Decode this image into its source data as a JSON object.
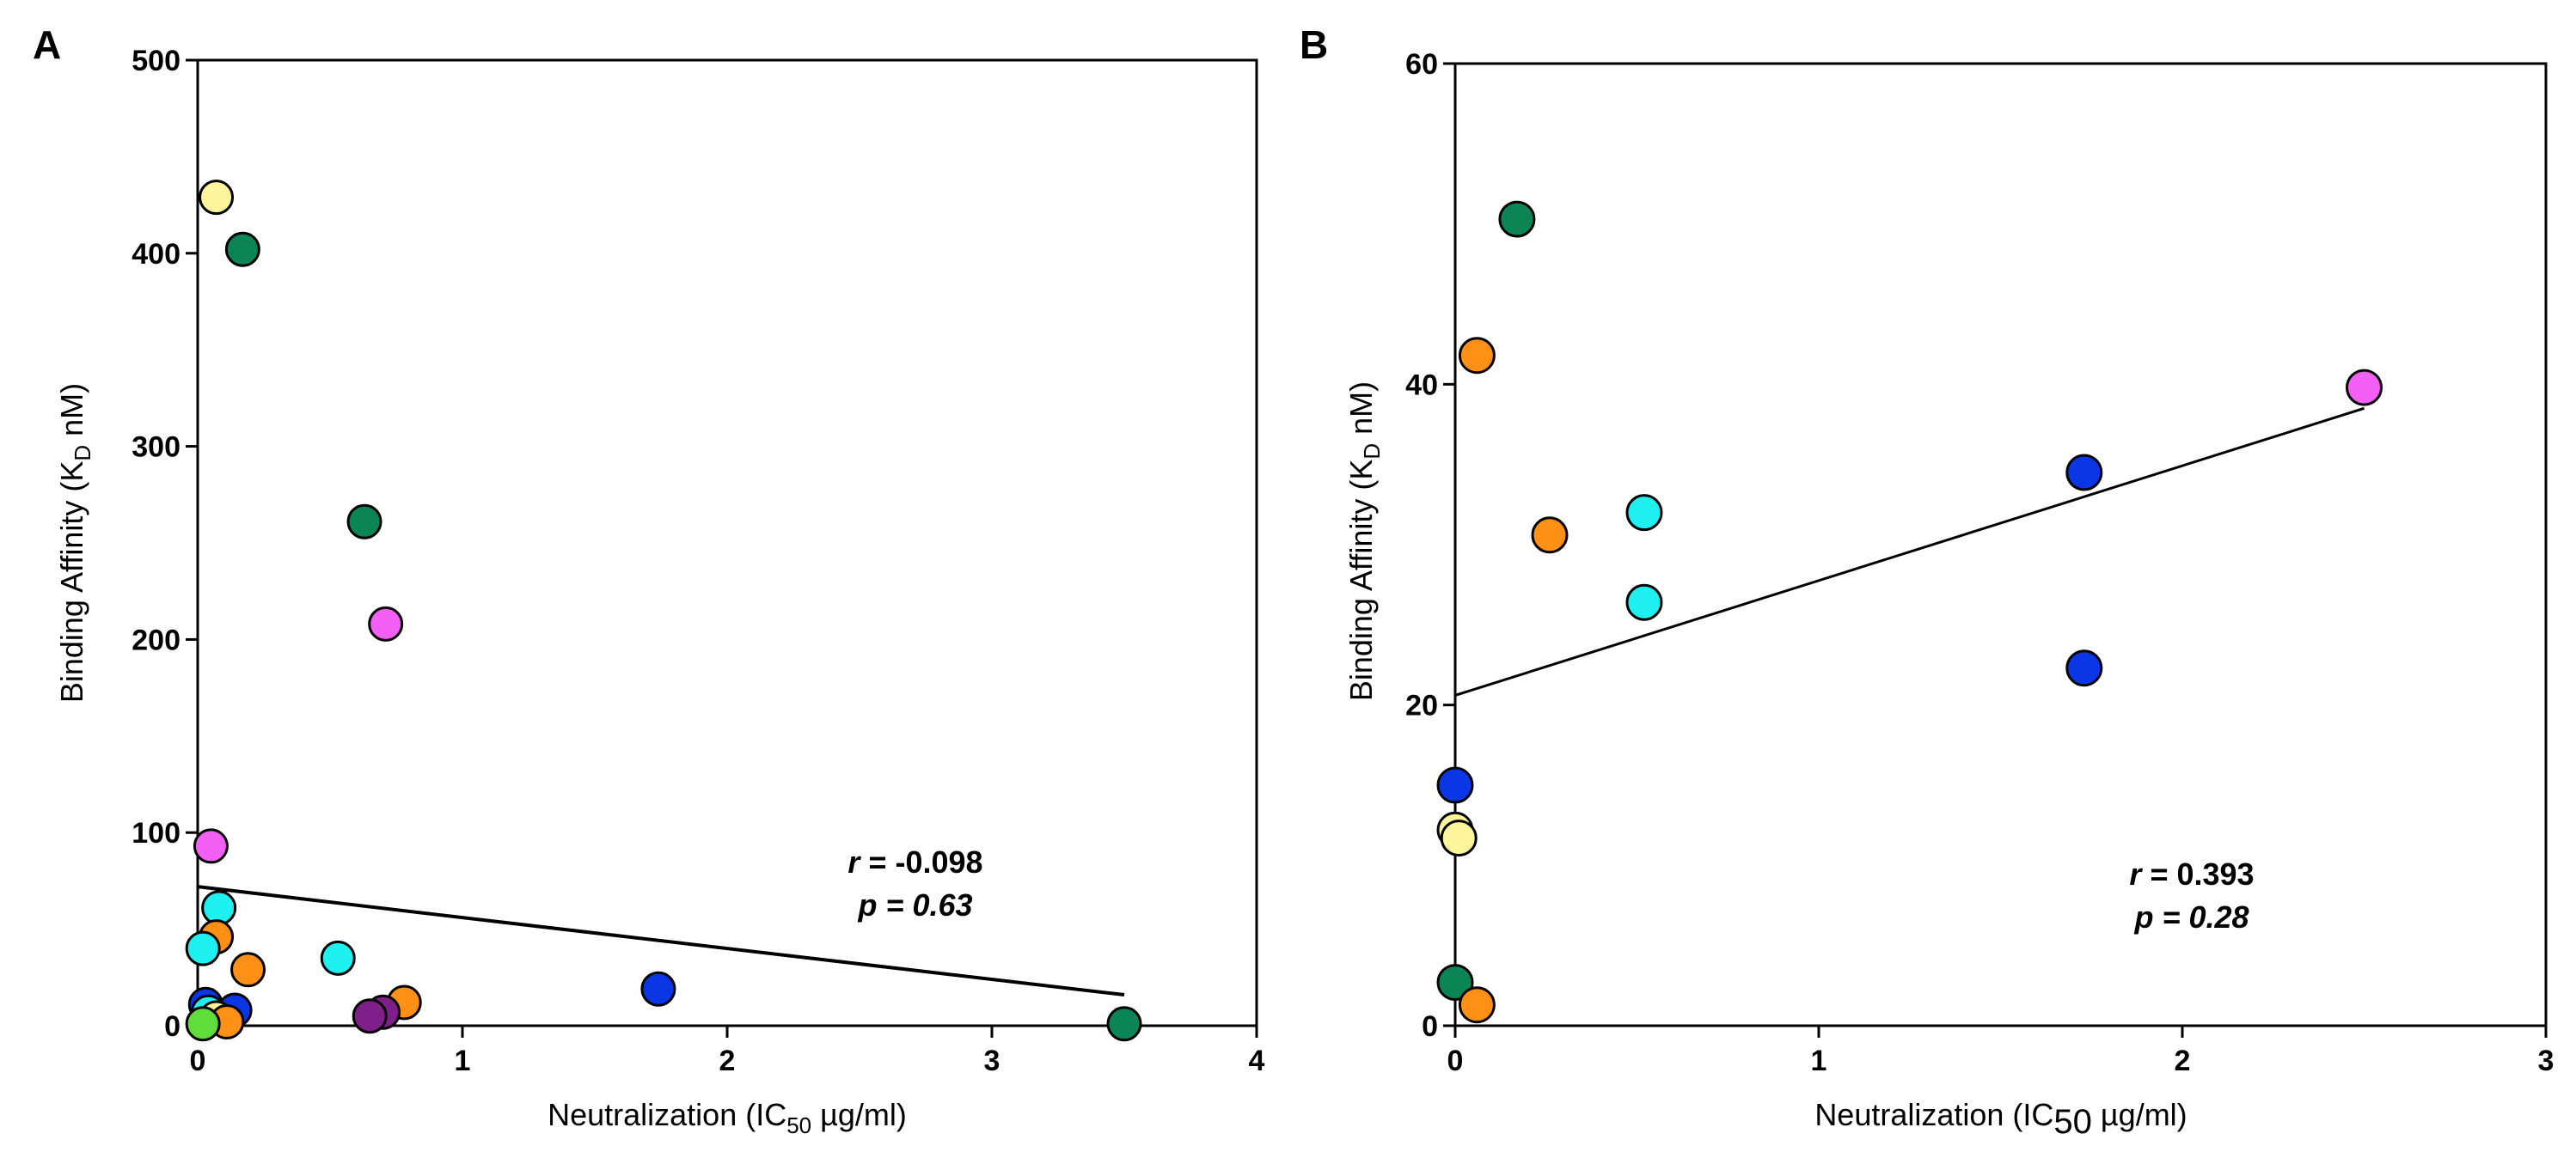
{
  "chart_data": [
    {
      "panel": "A",
      "type": "scatter",
      "xlabel": "Neutralization (IC50 µg/ml)",
      "ylabel": "Binding Affinity (KD nM)",
      "xlim": [
        0,
        4
      ],
      "ylim": [
        0,
        500
      ],
      "xticks": [
        0,
        1,
        2,
        3,
        4
      ],
      "yticks": [
        0,
        100,
        200,
        300,
        400,
        500
      ],
      "grid": false,
      "points": [
        {
          "x": 0.07,
          "y": 429,
          "color": "#fdf59b"
        },
        {
          "x": 0.17,
          "y": 402,
          "color": "#0b8556"
        },
        {
          "x": 0.63,
          "y": 261,
          "color": "#0b8556"
        },
        {
          "x": 0.71,
          "y": 208,
          "color": "#f45ff5"
        },
        {
          "x": 0.05,
          "y": 93,
          "color": "#f45ff5"
        },
        {
          "x": 0.08,
          "y": 61,
          "color": "#1ef0f0"
        },
        {
          "x": 0.07,
          "y": 46,
          "color": "#ff9016"
        },
        {
          "x": 0.02,
          "y": 40,
          "color": "#1ef0f0"
        },
        {
          "x": 0.53,
          "y": 35,
          "color": "#1ef0f0"
        },
        {
          "x": 0.19,
          "y": 29,
          "color": "#ff9016"
        },
        {
          "x": 1.74,
          "y": 19,
          "color": "#0b36e6"
        },
        {
          "x": 0.78,
          "y": 12,
          "color": "#ff9016"
        },
        {
          "x": 0.03,
          "y": 11,
          "color": "#0b36e6"
        },
        {
          "x": 0.14,
          "y": 8,
          "color": "#0b36e6"
        },
        {
          "x": 0.7,
          "y": 7,
          "color": "#7e1f8a"
        },
        {
          "x": 0.65,
          "y": 5,
          "color": "#7e1f8a"
        },
        {
          "x": 0.04,
          "y": 7,
          "color": "#1ef0f0"
        },
        {
          "x": 0.07,
          "y": 4,
          "color": "#fdf59b"
        },
        {
          "x": 0.11,
          "y": 2,
          "color": "#ff9016"
        },
        {
          "x": 0.02,
          "y": 1,
          "color": "#5fde3b"
        },
        {
          "x": 3.5,
          "y": 1,
          "color": "#0b8556"
        }
      ],
      "trendline": {
        "x": [
          0,
          3.5
        ],
        "y": [
          72,
          16
        ]
      },
      "annotation": {
        "r_label": "r",
        "r_value": "= -0.098",
        "p_label": "p",
        "p_value": "= 0.63"
      }
    },
    {
      "panel": "B",
      "type": "scatter",
      "xlabel": "Neutralization (IC50 µg/ml)",
      "ylabel": "Binding Affinity (KD nM)",
      "xlim": [
        0,
        3
      ],
      "ylim": [
        0,
        60
      ],
      "xticks": [
        0,
        1,
        2,
        3
      ],
      "yticks": [
        0,
        20,
        40,
        60
      ],
      "grid": false,
      "points": [
        {
          "x": 0.17,
          "y": 50.3,
          "color": "#0b8556"
        },
        {
          "x": 0.06,
          "y": 41.8,
          "color": "#ff9016"
        },
        {
          "x": 2.5,
          "y": 39.8,
          "color": "#f45ff5"
        },
        {
          "x": 1.73,
          "y": 34.5,
          "color": "#0b36e6"
        },
        {
          "x": 0.52,
          "y": 32.0,
          "color": "#1ef0f0"
        },
        {
          "x": 0.26,
          "y": 30.6,
          "color": "#ff9016"
        },
        {
          "x": 0.52,
          "y": 26.4,
          "color": "#1ef0f0"
        },
        {
          "x": 1.73,
          "y": 22.3,
          "color": "#0b36e6"
        },
        {
          "x": 0.0,
          "y": 15.0,
          "color": "#0b36e6"
        },
        {
          "x": 0.0,
          "y": 12.2,
          "color": "#fdf59b"
        },
        {
          "x": 0.01,
          "y": 11.7,
          "color": "#fdf59b"
        },
        {
          "x": 0.0,
          "y": 2.7,
          "color": "#0b8556"
        },
        {
          "x": 0.06,
          "y": 1.3,
          "color": "#ff9016"
        }
      ],
      "trendline": {
        "x": [
          0,
          2.5
        ],
        "y": [
          20.6,
          38.5
        ]
      },
      "annotation": {
        "r_label": "r",
        "r_value": "= 0.393",
        "p_label": "p",
        "p_value": "= 0.28"
      }
    }
  ]
}
